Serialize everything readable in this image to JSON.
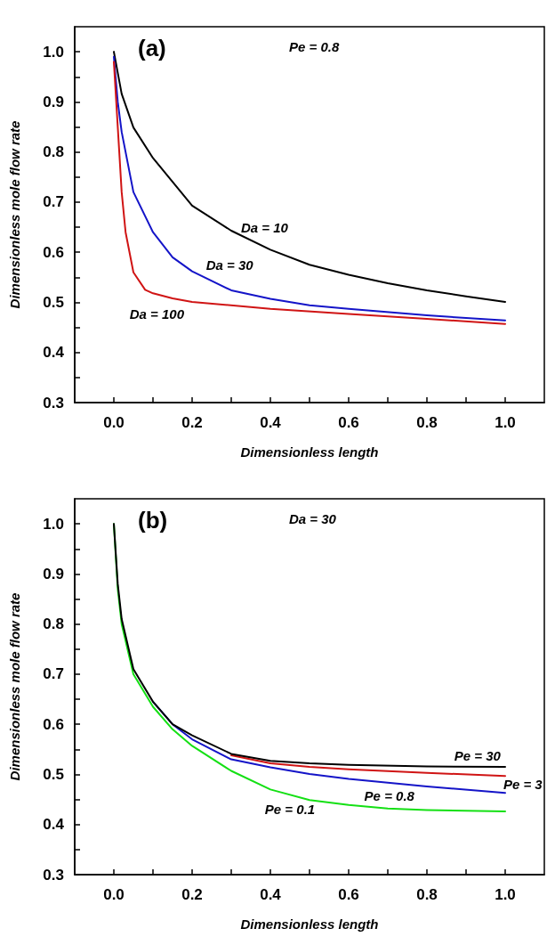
{
  "chart_data": [
    {
      "type": "line",
      "title": "(a)",
      "subtitle": "Pe = 0.8",
      "xlabel": "Dimensionless length",
      "ylabel": "Dimensionless mole flow rate",
      "xlim": [
        -0.1,
        1.1
      ],
      "ylim": [
        0.3,
        1.05
      ],
      "xticks": [
        {
          "value": 0,
          "label": "0.0"
        },
        {
          "value": 0.1,
          "label": null
        },
        {
          "value": 0.2,
          "label": "0.2"
        },
        {
          "value": 0.3,
          "label": null
        },
        {
          "value": 0.4,
          "label": "0.4"
        },
        {
          "value": 0.5,
          "label": null
        },
        {
          "value": 0.6,
          "label": "0.6"
        },
        {
          "value": 0.7,
          "label": null
        },
        {
          "value": 0.8,
          "label": "0.8"
        },
        {
          "value": 0.9,
          "label": null
        },
        {
          "value": 1,
          "label": "1.0"
        }
      ],
      "yticks": [
        {
          "value": 0.3,
          "label": "0.3"
        },
        {
          "value": 0.35,
          "label": null
        },
        {
          "value": 0.4,
          "label": "0.4"
        },
        {
          "value": 0.45,
          "label": null
        },
        {
          "value": 0.5,
          "label": "0.5"
        },
        {
          "value": 0.55,
          "label": null
        },
        {
          "value": 0.6,
          "label": "0.6"
        },
        {
          "value": 0.65,
          "label": null
        },
        {
          "value": 0.7,
          "label": "0.7"
        },
        {
          "value": 0.75,
          "label": null
        },
        {
          "value": 0.8,
          "label": "0.8"
        },
        {
          "value": 0.85,
          "label": null
        },
        {
          "value": 0.9,
          "label": "0.9"
        },
        {
          "value": 0.95,
          "label": null
        },
        {
          "value": 1,
          "label": "1.0"
        }
      ],
      "grid": false,
      "legend": false,
      "marker": "none",
      "line_style": "solid",
      "series": [
        {
          "name": "Da = 10",
          "color": "#000000",
          "x": [
            0,
            0.02,
            0.05,
            0.1,
            0.2,
            0.3,
            0.4,
            0.5,
            0.6,
            0.7,
            0.8,
            0.9,
            1.0
          ],
          "values": [
            1.0,
            0.916,
            0.849,
            0.788,
            0.693,
            0.643,
            0.605,
            0.575,
            0.555,
            0.538,
            0.524,
            0.512,
            0.501
          ]
        },
        {
          "name": "Da = 30",
          "color": "#1414c8",
          "x": [
            0,
            0.01,
            0.02,
            0.05,
            0.1,
            0.15,
            0.2,
            0.3,
            0.4,
            0.5,
            0.6,
            0.8,
            1.0
          ],
          "values": [
            0.99,
            0.9,
            0.84,
            0.72,
            0.64,
            0.59,
            0.562,
            0.524,
            0.507,
            0.494,
            0.487,
            0.474,
            0.464
          ]
        },
        {
          "name": "Da = 100",
          "color": "#d01414",
          "x": [
            0,
            0.01,
            0.02,
            0.03,
            0.05,
            0.08,
            0.1,
            0.15,
            0.2,
            0.4,
            0.6,
            0.8,
            1.0
          ],
          "values": [
            0.98,
            0.85,
            0.72,
            0.64,
            0.56,
            0.525,
            0.518,
            0.508,
            0.501,
            0.487,
            0.477,
            0.467,
            0.457
          ]
        }
      ]
    },
    {
      "type": "line",
      "title": "(b)",
      "subtitle": "Da = 30",
      "xlabel": "Dimensionless length",
      "ylabel": "Dimensionless mole flow rate",
      "xlim": [
        -0.1,
        1.1
      ],
      "ylim": [
        0.3,
        1.05
      ],
      "xticks": [
        {
          "value": 0,
          "label": "0.0"
        },
        {
          "value": 0.1,
          "label": null
        },
        {
          "value": 0.2,
          "label": "0.2"
        },
        {
          "value": 0.3,
          "label": null
        },
        {
          "value": 0.4,
          "label": "0.4"
        },
        {
          "value": 0.5,
          "label": null
        },
        {
          "value": 0.6,
          "label": "0.6"
        },
        {
          "value": 0.7,
          "label": null
        },
        {
          "value": 0.8,
          "label": "0.8"
        },
        {
          "value": 0.9,
          "label": null
        },
        {
          "value": 1,
          "label": "1.0"
        }
      ],
      "yticks": [
        {
          "value": 0.3,
          "label": "0.3"
        },
        {
          "value": 0.35,
          "label": null
        },
        {
          "value": 0.4,
          "label": "0.4"
        },
        {
          "value": 0.45,
          "label": null
        },
        {
          "value": 0.5,
          "label": "0.5"
        },
        {
          "value": 0.55,
          "label": null
        },
        {
          "value": 0.6,
          "label": "0.6"
        },
        {
          "value": 0.65,
          "label": null
        },
        {
          "value": 0.7,
          "label": "0.7"
        },
        {
          "value": 0.75,
          "label": null
        },
        {
          "value": 0.8,
          "label": "0.8"
        },
        {
          "value": 0.85,
          "label": null
        },
        {
          "value": 0.9,
          "label": "0.9"
        },
        {
          "value": 0.95,
          "label": null
        },
        {
          "value": 1,
          "label": "1.0"
        }
      ],
      "grid": false,
      "legend": false,
      "marker": "none",
      "line_style": "solid",
      "series": [
        {
          "name": "Pe = 0.1",
          "color": "#14e014",
          "x": [
            0,
            0.01,
            0.02,
            0.05,
            0.1,
            0.15,
            0.2,
            0.3,
            0.4,
            0.5,
            0.6,
            0.7,
            0.8,
            1.0
          ],
          "values": [
            1.0,
            0.87,
            0.8,
            0.7,
            0.635,
            0.59,
            0.557,
            0.507,
            0.47,
            0.449,
            0.439,
            0.432,
            0.429,
            0.426
          ]
        },
        {
          "name": "Pe = 0.8",
          "color": "#1414c8",
          "x": [
            0.1,
            0.15,
            0.2,
            0.3,
            0.4,
            0.5,
            0.6,
            0.8,
            1.0
          ],
          "values": [
            0.645,
            0.6,
            0.57,
            0.53,
            0.514,
            0.501,
            0.491,
            0.476,
            0.463
          ]
        },
        {
          "name": "Pe = 3",
          "color": "#d01414",
          "x": [
            0.3,
            0.4,
            0.5,
            0.6,
            0.8,
            1.0
          ],
          "values": [
            0.538,
            0.522,
            0.515,
            0.51,
            0.503,
            0.497
          ]
        },
        {
          "name": "Pe = 30",
          "color": "#000000",
          "x": [
            0,
            0.01,
            0.02,
            0.05,
            0.1,
            0.15,
            0.2,
            0.3,
            0.4,
            0.5,
            0.6,
            0.8,
            1.0
          ],
          "values": [
            1.0,
            0.88,
            0.81,
            0.71,
            0.645,
            0.6,
            0.578,
            0.541,
            0.527,
            0.522,
            0.519,
            0.516,
            0.515
          ]
        }
      ]
    }
  ]
}
